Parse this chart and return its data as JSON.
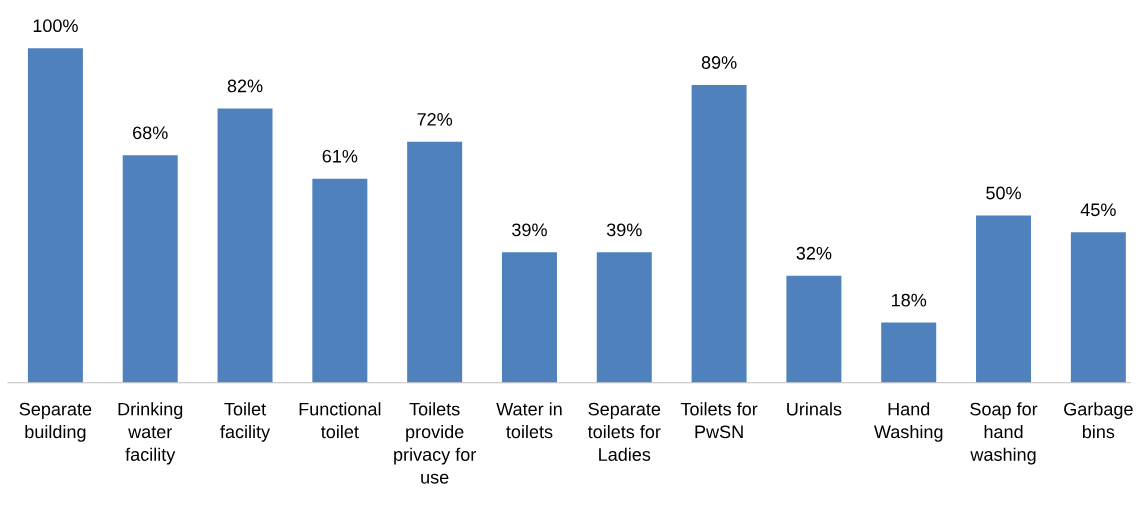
{
  "chart_data": {
    "type": "bar",
    "categories": [
      "Separate\nbuilding",
      "Drinking\nwater\nfacility",
      "Toilet\nfacility",
      "Functional\ntoilet",
      "Toilets\nprovide\nprivacy for\nuse",
      "Water in\ntoilets",
      "Separate\ntoilets for\nLadies",
      "Toilets for\nPwSN",
      "Urinals",
      "Hand\nWashing",
      "Soap for\nhand\nwashing",
      "Garbage\nbins"
    ],
    "values": [
      100,
      68,
      82,
      61,
      72,
      39,
      39,
      89,
      32,
      18,
      50,
      45
    ],
    "value_labels": [
      "100%",
      "68%",
      "82%",
      "61%",
      "72%",
      "39%",
      "39%",
      "89%",
      "32%",
      "18%",
      "50%",
      "45%"
    ],
    "color": "#4f81bd",
    "grid": false,
    "legend": false
  }
}
